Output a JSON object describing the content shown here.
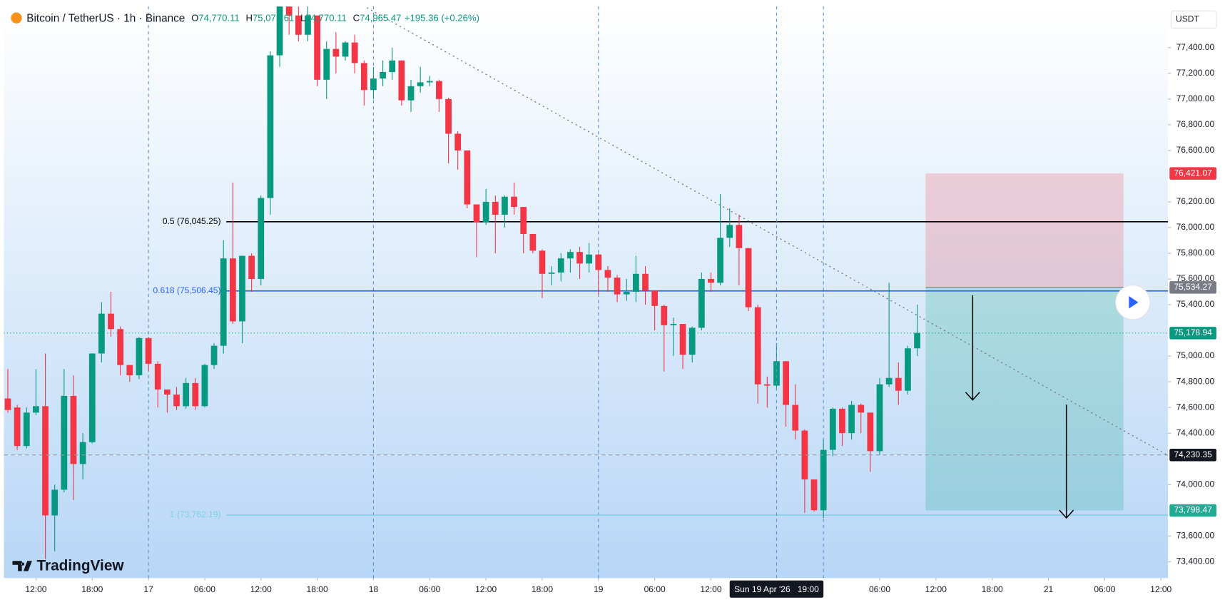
{
  "header": {
    "title": "Bitcoin / TetherUS · 1h · Binance",
    "ohlc": [
      {
        "key": "O",
        "value": "74,770.11"
      },
      {
        "key": "H",
        "value": "75,071.61"
      },
      {
        "key": "L",
        "value": "74,770.11"
      },
      {
        "key": "C",
        "value": "74,965.47"
      }
    ],
    "change": "+195.36 (+0.26%)"
  },
  "currency": "USDT",
  "logo": "TradingView",
  "chart_data": {
    "type": "candlestick",
    "up_color": "#089981",
    "down_color": "#f23645",
    "xlim": [
      -0.42,
      123.75
    ],
    "ylim": [
      73272,
      77722
    ],
    "yticks": [
      {
        "value": 77400,
        "label": "77,400.00"
      },
      {
        "value": 77200,
        "label": "77,200.00"
      },
      {
        "value": 77000,
        "label": "77,000.00"
      },
      {
        "value": 76800,
        "label": "76,800.00"
      },
      {
        "value": 76600,
        "label": "76,600.00"
      },
      {
        "value": 76200,
        "label": "76,200.00"
      },
      {
        "value": 76000,
        "label": "76,000.00"
      },
      {
        "value": 75800,
        "label": "75,800.00"
      },
      {
        "value": 75600,
        "label": "75,600.00"
      },
      {
        "value": 75400,
        "label": "75,400.00"
      },
      {
        "value": 75000,
        "label": "75,000.00"
      },
      {
        "value": 74800,
        "label": "74,800.00"
      },
      {
        "value": 74600,
        "label": "74,600.00"
      },
      {
        "value": 74400,
        "label": "74,400.00"
      },
      {
        "value": 74000,
        "label": "74,000.00"
      },
      {
        "value": 73600,
        "label": "73,600.00"
      },
      {
        "value": 73400,
        "label": "73,400.00"
      }
    ],
    "xticks": [
      {
        "value": 3,
        "label": "12:00"
      },
      {
        "value": 9,
        "label": "18:00"
      },
      {
        "value": 15,
        "label": "17"
      },
      {
        "value": 21,
        "label": "06:00"
      },
      {
        "value": 27,
        "label": "12:00"
      },
      {
        "value": 33,
        "label": "18:00"
      },
      {
        "value": 39,
        "label": "18"
      },
      {
        "value": 45,
        "label": "06:00"
      },
      {
        "value": 51,
        "label": "12:00"
      },
      {
        "value": 57,
        "label": "18:00"
      },
      {
        "value": 63,
        "label": "19"
      },
      {
        "value": 69,
        "label": "06:00"
      },
      {
        "value": 75,
        "label": "12:00"
      },
      {
        "value": 93,
        "label": "06:00"
      },
      {
        "value": 99,
        "label": "12:00"
      },
      {
        "value": 105,
        "label": "18:00"
      },
      {
        "value": 111,
        "label": "21"
      },
      {
        "value": 117,
        "label": "06:00"
      },
      {
        "value": 123,
        "label": "12:00"
      }
    ],
    "session_breaks": [
      15,
      39,
      63,
      87
    ],
    "ohlc": [
      [
        74670,
        74900,
        74560,
        74580
      ],
      [
        74600,
        74620,
        74270,
        74300
      ],
      [
        74300,
        74600,
        74280,
        74560
      ],
      [
        74560,
        74900,
        74540,
        74610
      ],
      [
        74610,
        75020,
        73420,
        73760
      ],
      [
        73760,
        74000,
        73480,
        73960
      ],
      [
        73960,
        74900,
        73940,
        74690
      ],
      [
        74690,
        74850,
        73880,
        74160
      ],
      [
        74160,
        74400,
        74040,
        74330
      ],
      [
        74330,
        75020,
        74320,
        75020
      ],
      [
        75020,
        75420,
        74950,
        75330
      ],
      [
        75330,
        75500,
        75150,
        75210
      ],
      [
        75210,
        75230,
        74850,
        74930
      ],
      [
        74930,
        74930,
        74800,
        74850
      ],
      [
        74850,
        75150,
        74820,
        75140
      ],
      [
        75140,
        75150,
        74880,
        74940
      ],
      [
        74940,
        74960,
        74600,
        74740
      ],
      [
        74740,
        74740,
        74560,
        74700
      ],
      [
        74700,
        74760,
        74580,
        74610
      ],
      [
        74610,
        74830,
        74590,
        74790
      ],
      [
        74790,
        74830,
        74580,
        74610
      ],
      [
        74610,
        74940,
        74600,
        74930
      ],
      [
        74930,
        75100,
        74900,
        75080
      ],
      [
        75080,
        75900,
        75020,
        75760
      ],
      [
        75760,
        76350,
        75250,
        75270
      ],
      [
        75270,
        75780,
        75100,
        75780
      ],
      [
        75780,
        75800,
        75500,
        75600
      ],
      [
        75600,
        76250,
        75550,
        76230
      ],
      [
        76230,
        77370,
        76100,
        77340
      ],
      [
        77340,
        77720,
        77250,
        77720
      ],
      [
        77720,
        77720,
        77500,
        77650
      ],
      [
        77650,
        77720,
        77450,
        77500
      ],
      [
        77500,
        77720,
        77450,
        77650
      ],
      [
        77650,
        77650,
        77100,
        77150
      ],
      [
        77150,
        77450,
        77000,
        77390
      ],
      [
        77390,
        77520,
        77200,
        77330
      ],
      [
        77330,
        77450,
        77300,
        77440
      ],
      [
        77440,
        77500,
        77200,
        77280
      ],
      [
        77280,
        77300,
        76950,
        77070
      ],
      [
        77070,
        77250,
        77000,
        77160
      ],
      [
        77160,
        77300,
        77100,
        77210
      ],
      [
        77210,
        77400,
        77150,
        77300
      ],
      [
        77300,
        77300,
        76950,
        76990
      ],
      [
        76990,
        77150,
        76900,
        77100
      ],
      [
        77100,
        77250,
        77050,
        77130
      ],
      [
        77130,
        77180,
        77100,
        77140
      ],
      [
        77140,
        77150,
        76900,
        77000
      ],
      [
        77000,
        77010,
        76500,
        76730
      ],
      [
        76730,
        76750,
        76450,
        76600
      ],
      [
        76600,
        76600,
        76150,
        76180
      ],
      [
        76180,
        76180,
        75770,
        76040
      ],
      [
        76040,
        76300,
        76020,
        76200
      ],
      [
        76200,
        76250,
        75800,
        76100
      ],
      [
        76100,
        76250,
        76000,
        76240
      ],
      [
        76240,
        76350,
        76100,
        76160
      ],
      [
        76160,
        76160,
        75800,
        75950
      ],
      [
        75950,
        75950,
        75800,
        75820
      ],
      [
        75820,
        75830,
        75450,
        75640
      ],
      [
        75640,
        75700,
        75550,
        75650
      ],
      [
        75650,
        75800,
        75580,
        75760
      ],
      [
        75760,
        75830,
        75650,
        75810
      ],
      [
        75810,
        75850,
        75600,
        75720
      ],
      [
        75720,
        75880,
        75650,
        75790
      ],
      [
        75790,
        75800,
        75480,
        75670
      ],
      [
        75670,
        75700,
        75500,
        75610
      ],
      [
        75610,
        75630,
        75420,
        75480
      ],
      [
        75480,
        75600,
        75430,
        75500
      ],
      [
        75500,
        75780,
        75420,
        75640
      ],
      [
        75640,
        75700,
        75400,
        75510
      ],
      [
        75510,
        75510,
        75200,
        75390
      ],
      [
        75390,
        75400,
        74880,
        75240
      ],
      [
        75240,
        75300,
        75000,
        75250
      ],
      [
        75250,
        75250,
        74900,
        75010
      ],
      [
        75010,
        75230,
        74950,
        75220
      ],
      [
        75220,
        75650,
        75200,
        75600
      ],
      [
        75600,
        75650,
        75500,
        75570
      ],
      [
        75570,
        76260,
        75550,
        75920
      ],
      [
        75920,
        76150,
        75850,
        76020
      ],
      [
        76020,
        76100,
        75550,
        75840
      ],
      [
        75840,
        75840,
        75350,
        75380
      ],
      [
        75380,
        75400,
        74630,
        74780
      ],
      [
        74780,
        74840,
        74600,
        74770
      ],
      [
        74770,
        75100,
        74740,
        74960
      ],
      [
        74960,
        74960,
        74450,
        74620
      ],
      [
        74620,
        74780,
        74350,
        74420
      ],
      [
        74420,
        74430,
        73780,
        74040
      ],
      [
        74040,
        74040,
        73790,
        73800
      ],
      [
        73800,
        74350,
        73740,
        74270
      ],
      [
        74270,
        74600,
        74220,
        74590
      ],
      [
        74590,
        74600,
        74300,
        74400
      ],
      [
        74400,
        74650,
        74350,
        74620
      ],
      [
        74620,
        74630,
        74400,
        74560
      ],
      [
        74560,
        74560,
        74100,
        74260
      ],
      [
        74260,
        74830,
        74230,
        74780
      ],
      [
        74780,
        75570,
        74760,
        74830
      ],
      [
        74830,
        74950,
        74620,
        74730
      ],
      [
        74730,
        75080,
        74700,
        75060
      ],
      [
        75060,
        75400,
        75000,
        75180
      ]
    ],
    "fib_levels": [
      {
        "value": 76045.25,
        "label": "0.5 (76,045.25)",
        "color": "#000000"
      },
      {
        "value": 75506.45,
        "label": "0.618 (75,506.45)",
        "color": "#2962ff"
      },
      {
        "value": 73762.19,
        "label": "1 (73,762.19)",
        "color": "#7fd1e3"
      }
    ],
    "fib_start": 23.3,
    "trendline": {
      "start": [
        38.3,
        77710
      ],
      "end": [
        123.75,
        74227
      ],
      "color": "#787b86"
    },
    "position": {
      "start": 97.9,
      "end": 119,
      "stop": 76421.07,
      "entry": 75534.27,
      "target": 73798.47
    },
    "price_labels": [
      {
        "value": 76421.07,
        "label": "76,421.07",
        "color": "#f23645"
      },
      {
        "value": 75534.27,
        "label": "75,534.27",
        "color": "#787b86"
      },
      {
        "value": 75178.94,
        "label": "75,178.94",
        "color": "#089981"
      },
      {
        "value": 73798.47,
        "label": "73,798.47",
        "color": "#22ab94"
      }
    ],
    "last_price": 75178.94,
    "crosshair": {
      "x": 82,
      "y": 74230.35,
      "y_label": "74,230.35",
      "x_label": "Sun 19 Apr '26   19:00"
    }
  }
}
